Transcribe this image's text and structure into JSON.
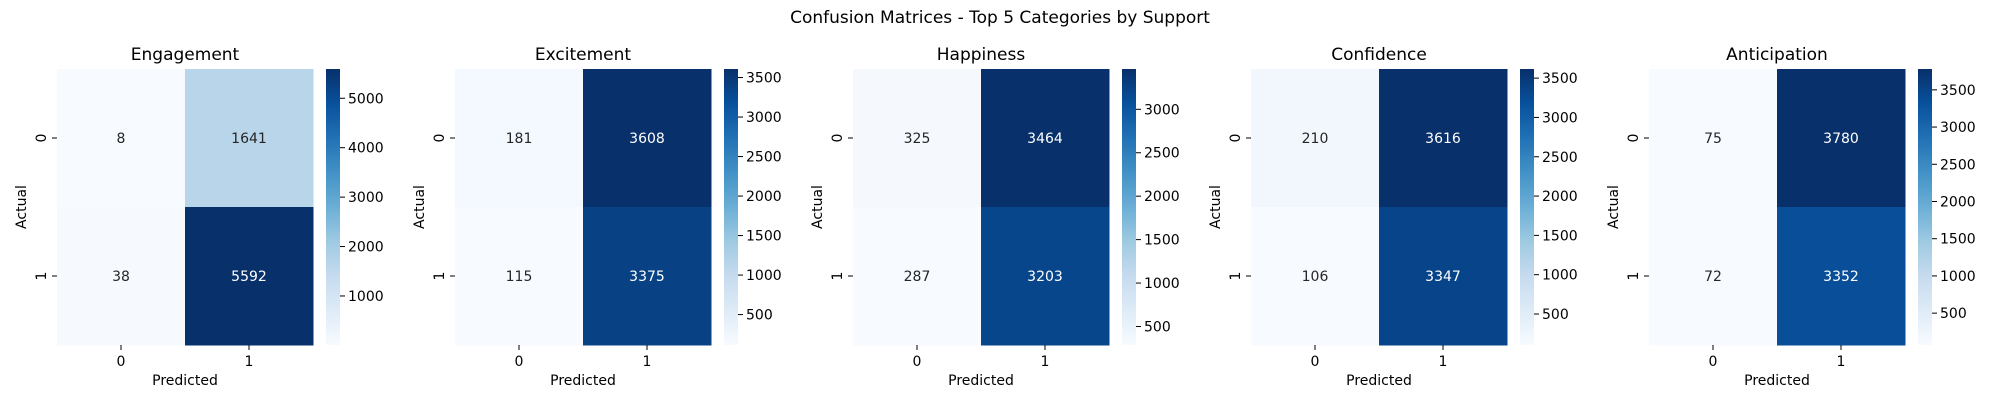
{
  "chart_data": {
    "type": "heatmap",
    "title": "Confusion Matrices - Top 5 Categories by Support",
    "colormap": "Blues",
    "colormap_stops": [
      "#f7fbff",
      "#deebf7",
      "#c6dbef",
      "#9ecae1",
      "#6baed6",
      "#4292c6",
      "#2171b5",
      "#08519c",
      "#08306b"
    ],
    "low_text_color": "#262626",
    "high_text_color": "#ffffff",
    "panels": [
      {
        "title": "Engagement",
        "xlabel": "Predicted",
        "ylabel": "Actual",
        "x_ticks": [
          "0",
          "1"
        ],
        "y_ticks": [
          "0",
          "1"
        ],
        "matrix": [
          [
            8,
            1641
          ],
          [
            38,
            5592
          ]
        ],
        "colorbar_ticks": [
          "1000",
          "2000",
          "3000",
          "4000",
          "5000"
        ]
      },
      {
        "title": "Excitement",
        "xlabel": "Predicted",
        "ylabel": "Actual",
        "x_ticks": [
          "0",
          "1"
        ],
        "y_ticks": [
          "0",
          "1"
        ],
        "matrix": [
          [
            181,
            3608
          ],
          [
            115,
            3375
          ]
        ],
        "colorbar_ticks": [
          "500",
          "1000",
          "1500",
          "2000",
          "2500",
          "3000",
          "3500"
        ]
      },
      {
        "title": "Happiness",
        "xlabel": "Predicted",
        "ylabel": "Actual",
        "x_ticks": [
          "0",
          "1"
        ],
        "y_ticks": [
          "0",
          "1"
        ],
        "matrix": [
          [
            325,
            3464
          ],
          [
            287,
            3203
          ]
        ],
        "colorbar_ticks": [
          "500",
          "1000",
          "1500",
          "2000",
          "2500",
          "3000"
        ]
      },
      {
        "title": "Confidence",
        "xlabel": "Predicted",
        "ylabel": "Actual",
        "x_ticks": [
          "0",
          "1"
        ],
        "y_ticks": [
          "0",
          "1"
        ],
        "matrix": [
          [
            210,
            3616
          ],
          [
            106,
            3347
          ]
        ],
        "colorbar_ticks": [
          "500",
          "1000",
          "1500",
          "2000",
          "2500",
          "3000",
          "3500"
        ]
      },
      {
        "title": "Anticipation",
        "xlabel": "Predicted",
        "ylabel": "Actual",
        "x_ticks": [
          "0",
          "1"
        ],
        "y_ticks": [
          "0",
          "1"
        ],
        "matrix": [
          [
            75,
            3780
          ],
          [
            72,
            3352
          ]
        ],
        "colorbar_ticks": [
          "500",
          "1000",
          "1500",
          "2000",
          "2500",
          "3000",
          "3500"
        ]
      }
    ]
  }
}
